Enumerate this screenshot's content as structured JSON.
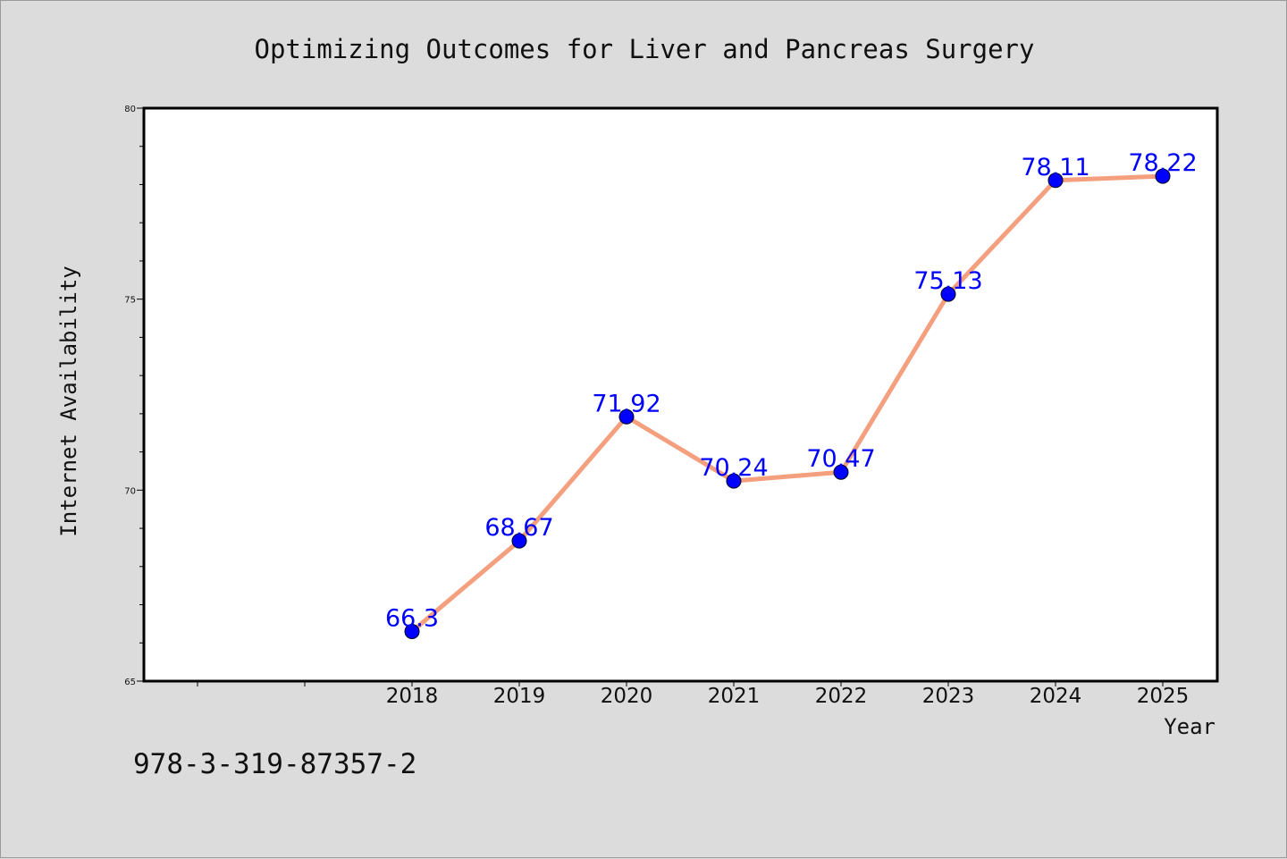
{
  "chart_data": {
    "type": "line",
    "title": "Optimizing Outcomes for Liver and Pancreas Surgery",
    "xlabel": "Year",
    "ylabel": "Internet Availability",
    "x": [
      "2018",
      "2019",
      "2020",
      "2021",
      "2022",
      "2023",
      "2024",
      "2025"
    ],
    "series": [
      {
        "values": [
          66.3,
          68.67,
          71.92,
          70.24,
          70.47,
          75.13,
          78.11,
          78.22
        ],
        "labels": [
          "66.3",
          "68.67",
          "71.92",
          "70.24",
          "70.47",
          "75.13",
          "78.11",
          "78.22"
        ]
      }
    ],
    "ylim": [
      65,
      80
    ],
    "yticks": [
      "65",
      "70",
      "75",
      "80"
    ],
    "grid": false,
    "line_color": "#f4a07e",
    "marker_color": "#0000ff",
    "label_color": "#0000ff"
  },
  "footer": {
    "text": "978-3-319-87357-2"
  }
}
